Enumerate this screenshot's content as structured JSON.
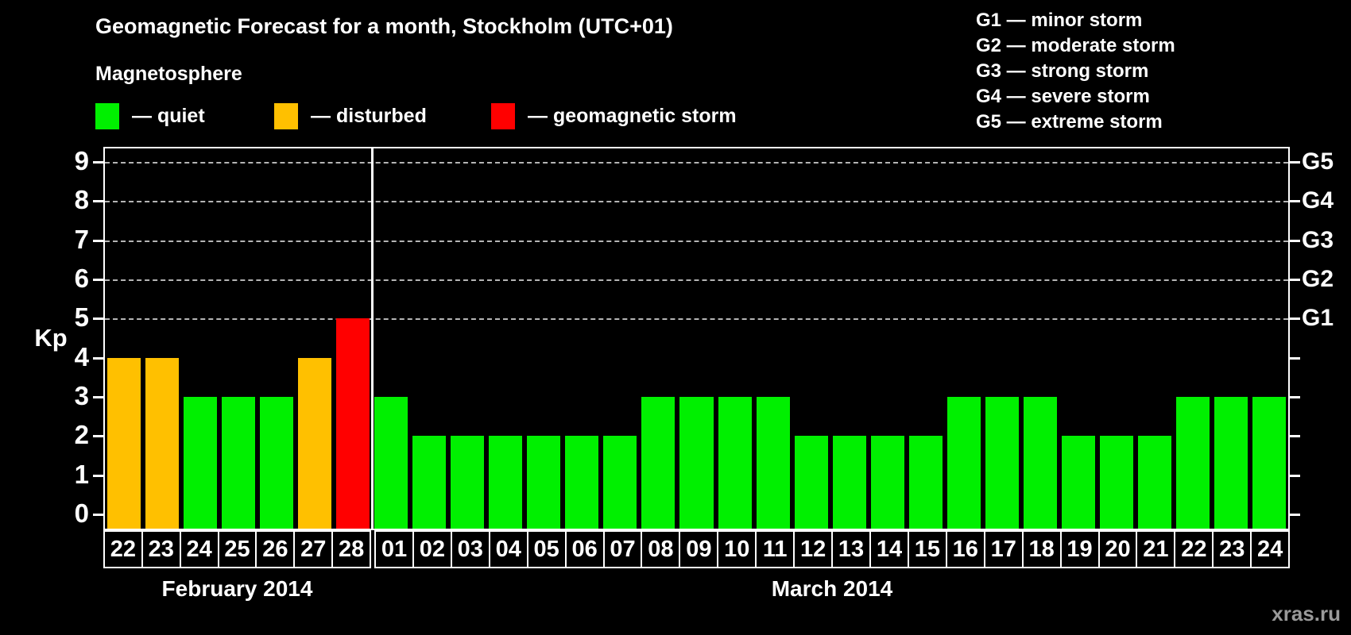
{
  "header": {
    "title": "Geomagnetic Forecast for a month, Stockholm (UTC+01)",
    "subtitle": "Magnetosphere"
  },
  "colors": {
    "quiet": "#00f000",
    "disturbed": "#ffc000",
    "storm": "#ff0000",
    "grid": "#b5b5b5",
    "axis": "#ffffff",
    "watermark": "#999999"
  },
  "legend": [
    {
      "key": "quiet",
      "label": "— quiet"
    },
    {
      "key": "disturbed",
      "label": "— disturbed"
    },
    {
      "key": "storm",
      "label": "— geomagnetic storm"
    }
  ],
  "storm_scale": [
    "G1 — minor storm",
    "G2 — moderate storm",
    "G3 — strong storm",
    "G4 — severe storm",
    "G5 — extreme storm"
  ],
  "watermark": "xras.ru",
  "chart_data": {
    "type": "bar",
    "ylabel": "Kp",
    "ylim": [
      -0.36,
      9.34
    ],
    "y_ticks": [
      0,
      1,
      2,
      3,
      4,
      5,
      6,
      7,
      8,
      9
    ],
    "gridlines": [
      5,
      6,
      7,
      8,
      9
    ],
    "grid": "dashed, horizontal only at storm levels",
    "legend_position": "top",
    "right_labels": [
      {
        "value": 5,
        "label": "G1"
      },
      {
        "value": 6,
        "label": "G2"
      },
      {
        "value": 7,
        "label": "G3"
      },
      {
        "value": 8,
        "label": "G4"
      },
      {
        "value": 9,
        "label": "G5"
      }
    ],
    "groups": [
      {
        "label": "February 2014",
        "days": [
          "22",
          "23",
          "24",
          "25",
          "26",
          "27",
          "28"
        ],
        "values": [
          4,
          4,
          3,
          3,
          3,
          4,
          5
        ],
        "status": [
          "disturbed",
          "disturbed",
          "quiet",
          "quiet",
          "quiet",
          "disturbed",
          "storm"
        ]
      },
      {
        "label": "March 2014",
        "days": [
          "01",
          "02",
          "03",
          "04",
          "05",
          "06",
          "07",
          "08",
          "09",
          "10",
          "11",
          "12",
          "13",
          "14",
          "15",
          "16",
          "17",
          "18",
          "19",
          "20",
          "21",
          "22",
          "23",
          "24"
        ],
        "values": [
          3,
          2,
          2,
          2,
          2,
          2,
          2,
          3,
          3,
          3,
          3,
          2,
          2,
          2,
          2,
          3,
          3,
          3,
          2,
          2,
          2,
          3,
          3,
          3
        ],
        "status": [
          "quiet",
          "quiet",
          "quiet",
          "quiet",
          "quiet",
          "quiet",
          "quiet",
          "quiet",
          "quiet",
          "quiet",
          "quiet",
          "quiet",
          "quiet",
          "quiet",
          "quiet",
          "quiet",
          "quiet",
          "quiet",
          "quiet",
          "quiet",
          "quiet",
          "quiet",
          "quiet",
          "quiet"
        ]
      }
    ]
  }
}
